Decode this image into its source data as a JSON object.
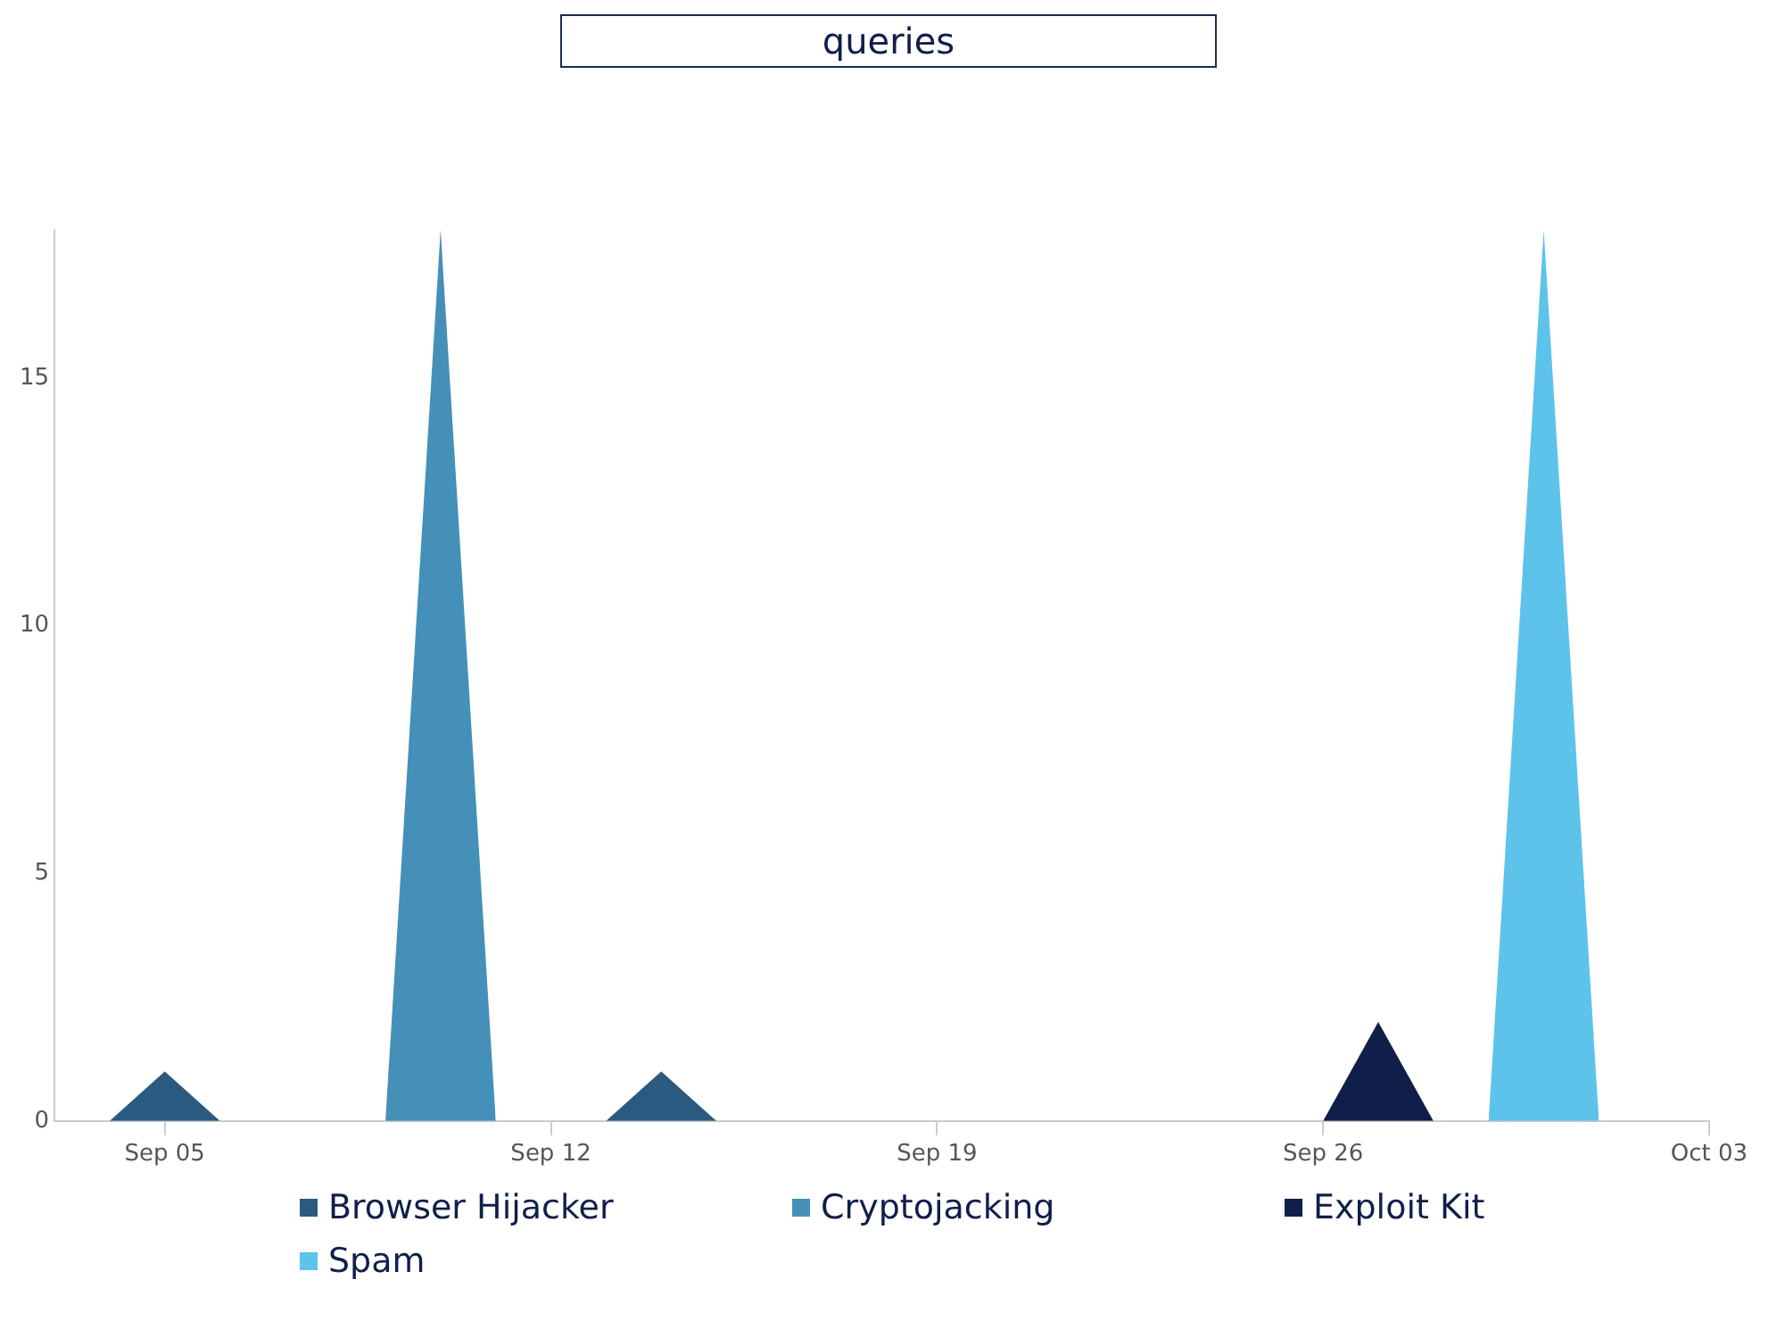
{
  "chart_data": {
    "type": "area",
    "title": "queries",
    "series": [
      {
        "name": "Browser Hijacker",
        "color": "#2a5a80",
        "x": [
          "--09-04",
          "--09-05",
          "--09-06",
          "--09-13",
          "--09-14",
          "--09-15"
        ],
        "values": [
          0,
          1,
          0,
          0,
          1,
          0
        ]
      },
      {
        "name": "Cryptojacking",
        "color": "#4590b8",
        "x": [
          "--09-09",
          "--09-10",
          "--09-11"
        ],
        "values": [
          0,
          18,
          0
        ]
      },
      {
        "name": "Exploit Kit",
        "color": "#0f1f4a",
        "x": [
          "--09-26",
          "--09-27",
          "--09-28"
        ],
        "values": [
          0,
          2,
          0
        ]
      },
      {
        "name": "Spam",
        "color": "#5ec3ea",
        "x": [
          "--09-29",
          "--09-30",
          "--10-01"
        ],
        "values": [
          0,
          18,
          0
        ]
      }
    ],
    "xlim": [
      "--09-03",
      "--10-03"
    ],
    "xticks": [
      {
        "value": "--09-05",
        "label": "Sep 05"
      },
      {
        "value": "--09-12",
        "label": "Sep 12"
      },
      {
        "value": "--09-19",
        "label": "Sep 19"
      },
      {
        "value": "--09-26",
        "label": "Sep 26"
      },
      {
        "value": "--10-03",
        "label": "Oct 03"
      }
    ],
    "ylim": [
      0,
      18
    ],
    "yticks": [
      0,
      5,
      10,
      15
    ],
    "grid": false,
    "legend": "bottom"
  }
}
